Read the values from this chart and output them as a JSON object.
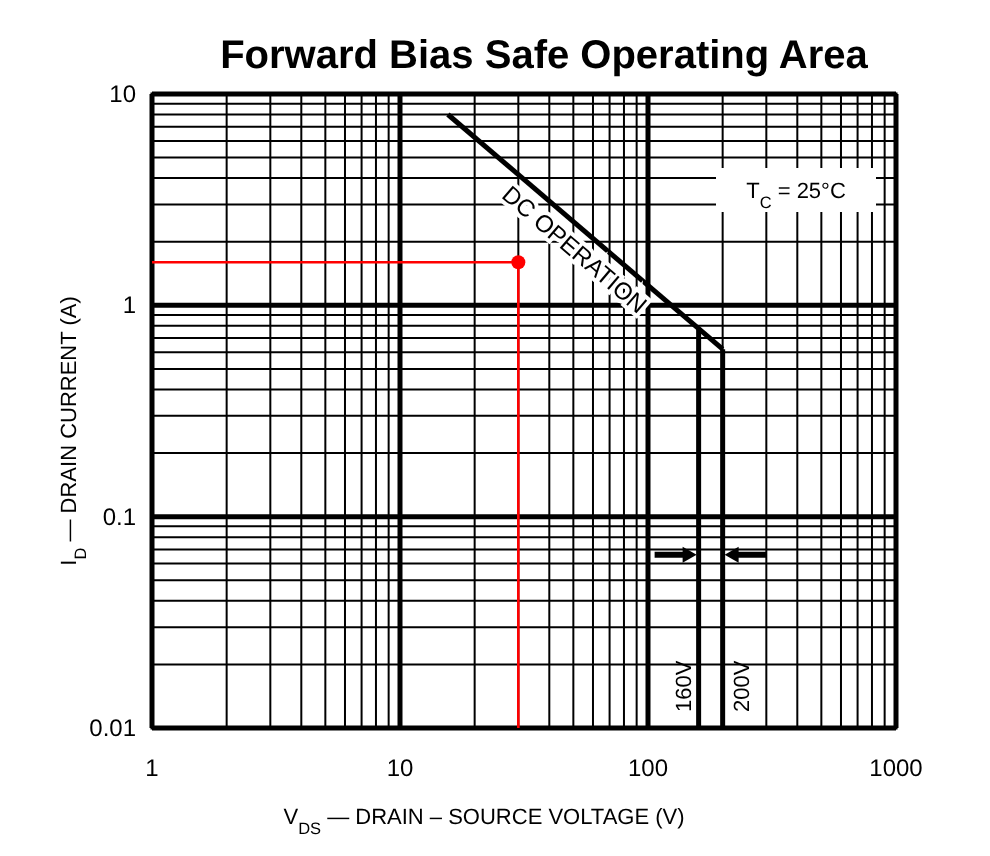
{
  "chart_data": {
    "type": "line",
    "title": "Forward Bias Safe Operating Area",
    "xlabel": "V$_{DS}$ — DRAIN – SOURCE VOLTAGE   (V)",
    "ylabel": "I$_{D}$ — DRAIN CURRENT   (A)",
    "log": "xy",
    "grid": true,
    "line_style": "solid",
    "marker": "none",
    "xlim": [
      1,
      1000
    ],
    "ylim": [
      0.01,
      10
    ],
    "xticks": [
      1,
      10,
      100,
      1000
    ],
    "yticks": [
      0.01,
      0.1,
      1,
      10
    ],
    "annotations": [
      "T$_{C}$ = 25°C"
    ],
    "series": [
      {
        "name": "DC OPERATION",
        "color": "#000000",
        "x": [
          15.6,
          200
        ],
        "values": [
          8,
          0.62
        ]
      },
      {
        "name": "160V",
        "color": "#000000",
        "x": [
          160,
          160
        ],
        "values": [
          0.77,
          0.01
        ]
      },
      {
        "name": "200V",
        "color": "#000000",
        "x": [
          200,
          200
        ],
        "values": [
          0.62,
          0.01
        ]
      },
      {
        "color": "#ff0000",
        "x": [
          1,
          30,
          30
        ],
        "values": [
          1.6,
          1.6,
          0.01
        ]
      },
      {
        "type": "scatter",
        "marker": "circle",
        "color": "#ff0000",
        "x": [
          30
        ],
        "values": [
          1.6
        ]
      }
    ]
  }
}
